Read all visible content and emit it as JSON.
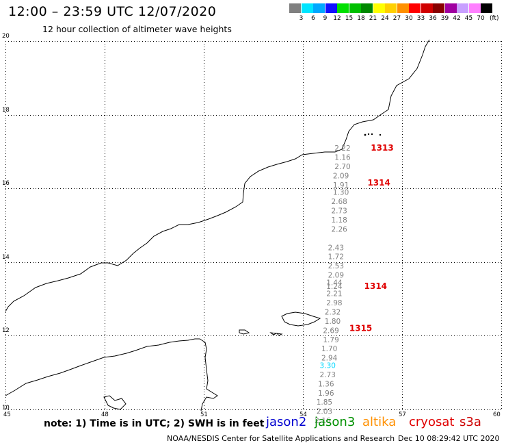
{
  "header": {
    "title": "12:00 – 23:59 UTC 12/07/2020",
    "subtitle": "12 hour collection of altimeter wave heights"
  },
  "colorbar": {
    "unit": "(ft)",
    "steps": [
      {
        "label": "3",
        "color": "#808080"
      },
      {
        "label": "6",
        "color": "#00e5ff"
      },
      {
        "label": "9",
        "color": "#00a8ff"
      },
      {
        "label": "12",
        "color": "#1010ff"
      },
      {
        "label": "15",
        "color": "#00e000"
      },
      {
        "label": "18",
        "color": "#00c000"
      },
      {
        "label": "21",
        "color": "#008800"
      },
      {
        "label": "24",
        "color": "#ffff00"
      },
      {
        "label": "27",
        "color": "#ffd000"
      },
      {
        "label": "30",
        "color": "#ff9000"
      },
      {
        "label": "33",
        "color": "#ff0000"
      },
      {
        "label": "36",
        "color": "#d00000"
      },
      {
        "label": "39",
        "color": "#880000"
      },
      {
        "label": "42",
        "color": "#a000a0"
      },
      {
        "label": "45",
        "color": "#c8a0ff"
      },
      {
        "label": "70",
        "color": "#ff80ff"
      },
      {
        "label": "",
        "color": "#000000"
      }
    ]
  },
  "map": {
    "lon_ticks": [
      "45",
      "48",
      "51",
      "54",
      "57",
      "60"
    ],
    "lat_ticks": [
      "20",
      "18",
      "16",
      "14",
      "12",
      "10"
    ]
  },
  "chart_data": {
    "type": "scatter",
    "xlim": [
      45,
      60
    ],
    "ylim": [
      10,
      20
    ],
    "grid": true,
    "track_points": [
      {
        "lon": 55.2,
        "lat": 17.1,
        "swh": "2.22",
        "color": "#808080"
      },
      {
        "lon": 55.2,
        "lat": 16.85,
        "swh": "1.16",
        "color": "#808080"
      },
      {
        "lon": 55.2,
        "lat": 16.6,
        "swh": "2.70",
        "color": "#808080"
      },
      {
        "lon": 55.15,
        "lat": 16.35,
        "swh": "2.09",
        "color": "#808080"
      },
      {
        "lon": 55.15,
        "lat": 16.1,
        "swh": "1.91",
        "color": "#808080"
      },
      {
        "lon": 55.15,
        "lat": 15.9,
        "swh": "1.30",
        "color": "#808080"
      },
      {
        "lon": 55.1,
        "lat": 15.65,
        "swh": "2.68",
        "color": "#808080"
      },
      {
        "lon": 55.1,
        "lat": 15.4,
        "swh": "2.73",
        "color": "#808080"
      },
      {
        "lon": 55.1,
        "lat": 15.15,
        "swh": "1.18",
        "color": "#808080"
      },
      {
        "lon": 55.1,
        "lat": 14.9,
        "swh": "2.26",
        "color": "#808080"
      },
      {
        "lon": 55.0,
        "lat": 14.4,
        "swh": "2.43",
        "color": "#808080"
      },
      {
        "lon": 55.0,
        "lat": 14.15,
        "swh": "1.72",
        "color": "#808080"
      },
      {
        "lon": 55.0,
        "lat": 13.9,
        "swh": "2.53",
        "color": "#808080"
      },
      {
        "lon": 55.0,
        "lat": 13.65,
        "swh": "2.09",
        "color": "#808080"
      },
      {
        "lon": 54.95,
        "lat": 13.45,
        "swh": "1.44",
        "color": "#808080"
      },
      {
        "lon": 54.95,
        "lat": 13.35,
        "swh": "1.24",
        "color": "#808080"
      },
      {
        "lon": 54.95,
        "lat": 13.15,
        "swh": "2.21",
        "color": "#808080"
      },
      {
        "lon": 54.95,
        "lat": 12.9,
        "swh": "2.98",
        "color": "#808080"
      },
      {
        "lon": 54.9,
        "lat": 12.65,
        "swh": "2.32",
        "color": "#808080"
      },
      {
        "lon": 54.9,
        "lat": 12.4,
        "swh": "1.80",
        "color": "#808080"
      },
      {
        "lon": 54.85,
        "lat": 12.15,
        "swh": "2.69",
        "color": "#808080"
      },
      {
        "lon": 54.85,
        "lat": 11.9,
        "swh": "1.79",
        "color": "#808080"
      },
      {
        "lon": 54.8,
        "lat": 11.65,
        "swh": "1.70",
        "color": "#808080"
      },
      {
        "lon": 54.8,
        "lat": 11.4,
        "swh": "2.94",
        "color": "#808080"
      },
      {
        "lon": 54.75,
        "lat": 11.2,
        "swh": "3.30",
        "color": "#00d8ff"
      },
      {
        "lon": 54.75,
        "lat": 10.95,
        "swh": "2.73",
        "color": "#808080"
      },
      {
        "lon": 54.7,
        "lat": 10.7,
        "swh": "1.36",
        "color": "#808080"
      },
      {
        "lon": 54.7,
        "lat": 10.45,
        "swh": "1.96",
        "color": "#808080"
      },
      {
        "lon": 54.65,
        "lat": 10.2,
        "swh": "1.85",
        "color": "#808080"
      },
      {
        "lon": 54.65,
        "lat": 9.95,
        "swh": "2.03",
        "color": "#808080"
      },
      {
        "lon": 54.6,
        "lat": 9.7,
        "swh": "2.16",
        "color": "#808080"
      }
    ],
    "pass_labels": [
      {
        "lon": 56.4,
        "lat": 17.1,
        "text": "1313",
        "color": "#e00000"
      },
      {
        "lon": 56.3,
        "lat": 16.15,
        "text": "1314",
        "color": "#e00000"
      },
      {
        "lon": 56.2,
        "lat": 13.35,
        "text": "1314",
        "color": "#e00000"
      },
      {
        "lon": 55.75,
        "lat": 12.2,
        "text": "1315",
        "color": "#e00000"
      }
    ]
  },
  "footer": {
    "note": "note: 1) Time is in UTC; 2) SWH is in feet",
    "satellites": [
      {
        "name": "jason2",
        "color": "#0000d0"
      },
      {
        "name": "jason3",
        "color": "#009000"
      },
      {
        "name": "altika",
        "color": "#ff9000"
      },
      {
        "name": "cryosat",
        "color": "#e00000"
      },
      {
        "name": "s3a",
        "color": "#cc0000"
      }
    ],
    "credit": "NOAA/NESDIS Center for Satellite Applications and Research",
    "timestamp": "Dec 10 08:29:42 UTC 2020"
  }
}
